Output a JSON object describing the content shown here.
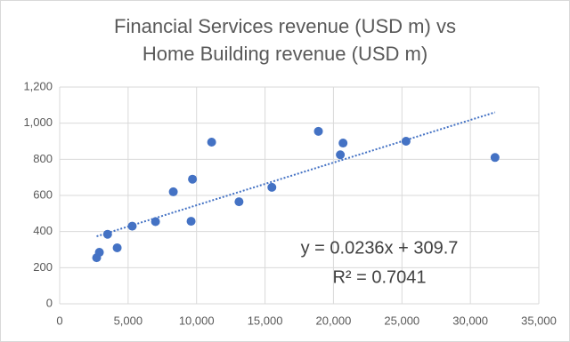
{
  "chart_data": {
    "type": "scatter",
    "title": [
      "Financial Services revenue (USD m) vs",
      "Home Building revenue (USD m)"
    ],
    "color": "#4472c4",
    "x": [
      2700,
      2900,
      3500,
      4200,
      5300,
      7000,
      8300,
      9700,
      9600,
      11100,
      13100,
      15500,
      18900,
      20700,
      20500,
      25300,
      31800
    ],
    "values": [
      255,
      285,
      385,
      310,
      430,
      455,
      620,
      690,
      457,
      895,
      565,
      645,
      955,
      890,
      825,
      900,
      810
    ],
    "xlim": [
      0,
      35000
    ],
    "xticks": [
      0,
      {
        "value": 5000,
        "label": "5,000"
      },
      {
        "value": 10000,
        "label": "10,000"
      },
      {
        "value": 15000,
        "label": "15,000"
      },
      {
        "value": 20000,
        "label": "20,000"
      },
      {
        "value": 25000,
        "label": "25,000"
      },
      {
        "value": 30000,
        "label": "30,000"
      },
      {
        "value": 35000,
        "label": "35,000"
      }
    ],
    "ylim": [
      0,
      1200
    ],
    "yticks": [
      0,
      200,
      400,
      600,
      800,
      {
        "value": 1000,
        "label": "1,000"
      },
      {
        "value": 1200,
        "label": "1,200"
      }
    ],
    "grid": true,
    "trendline": {
      "slope": 0.0236,
      "intercept": 309.7,
      "r2": 0.7041,
      "equation_label": "y = 0.0236x + 309.7",
      "r2_label": "R² = 0.7041"
    }
  }
}
